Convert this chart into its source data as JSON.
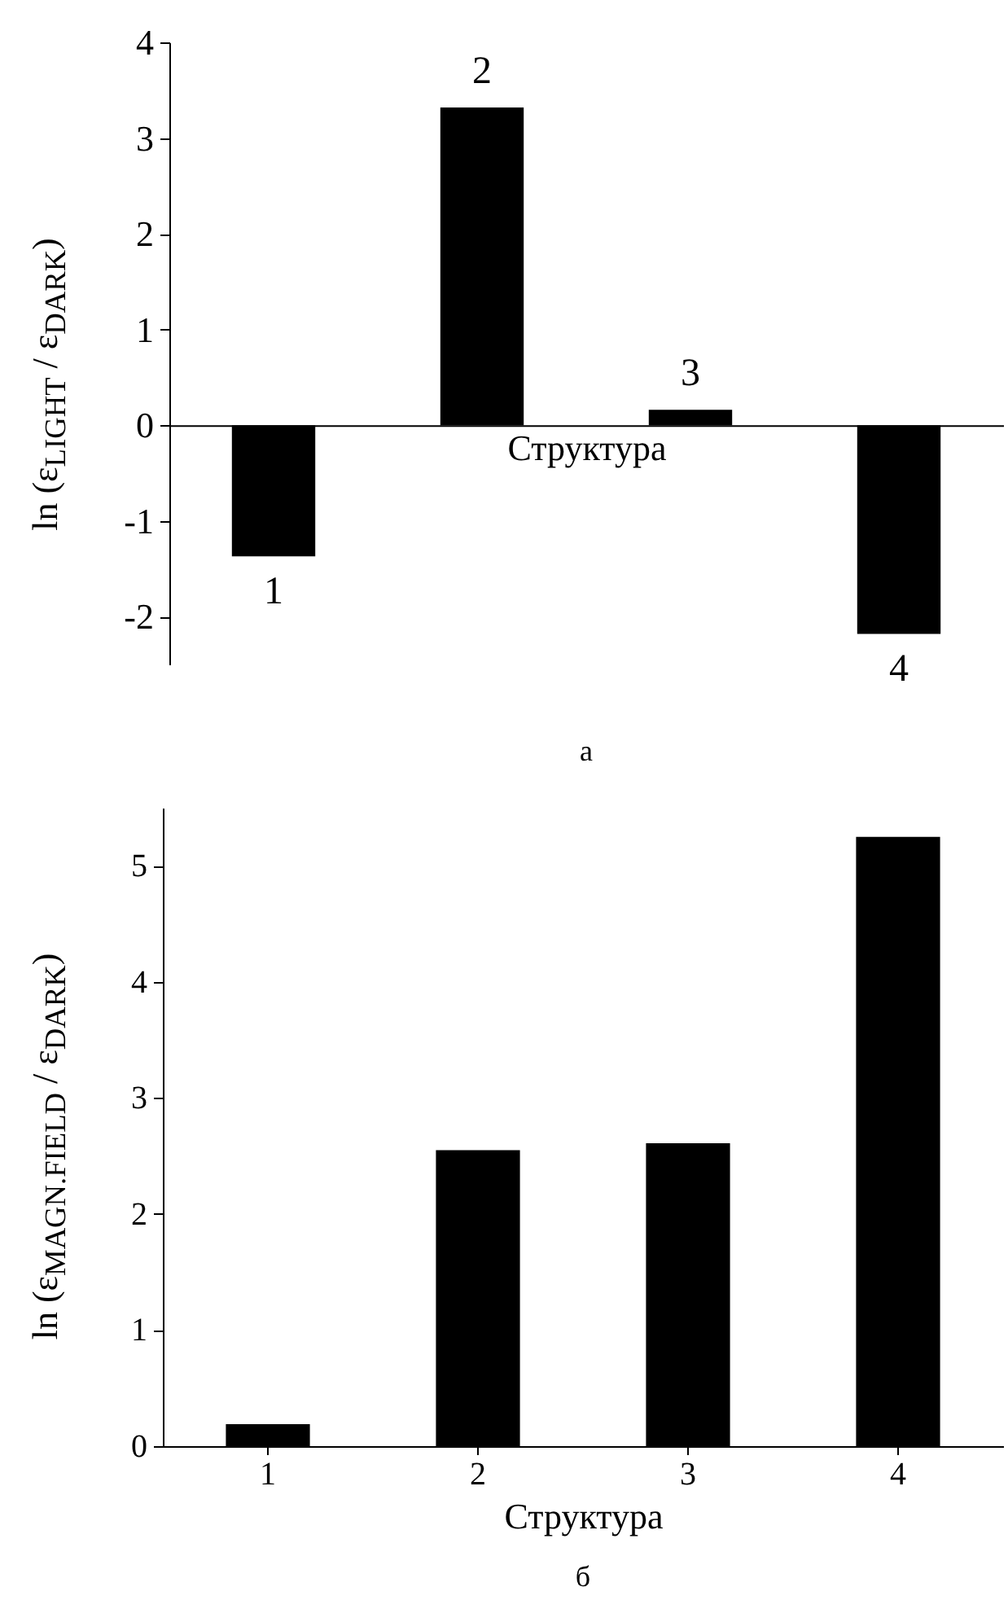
{
  "chart_data": [
    {
      "type": "bar",
      "categories": [
        "1",
        "2",
        "3",
        "4"
      ],
      "values": [
        -1.37,
        3.32,
        0.16,
        -2.18
      ],
      "color": "#000000",
      "xlabel": "Структура",
      "ylabel": "ln (ε$_{LIGHT}$ / ε$_{DARK}$)",
      "ylim": [
        -2.5,
        4
      ],
      "yticks": [
        -2,
        -1,
        0,
        1,
        2,
        3,
        4
      ],
      "tick_labels": "y",
      "annotations": [
        "а"
      ]
    },
    {
      "type": "bar",
      "categories": [
        "1",
        "2",
        "3",
        "4"
      ],
      "values": [
        0.19,
        2.55,
        2.61,
        5.25
      ],
      "color": "#000000",
      "xlabel": "Структура",
      "ylabel": "ln (ε$_{MAGN.FIELD}$ / ε$_{DARK}$)",
      "ylim": [
        0,
        5.5
      ],
      "yticks": [
        0,
        1,
        2,
        3,
        4,
        5
      ],
      "annotations": [
        "б"
      ]
    }
  ]
}
